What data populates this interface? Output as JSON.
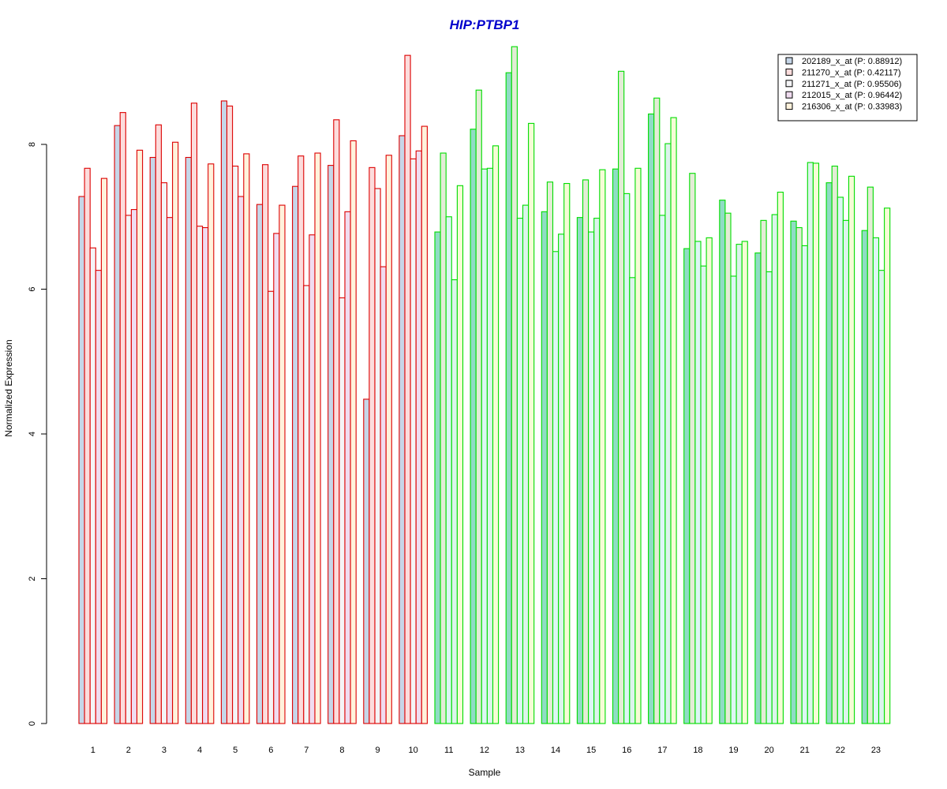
{
  "chart_data": {
    "type": "bar",
    "title": "HIP:PTBP1",
    "title_color": "#0000cc",
    "xlabel": "Sample",
    "ylabel": "Normalized Expression",
    "ylim": [
      0,
      9.4
    ],
    "yticks": [
      0,
      2,
      4,
      6,
      8
    ],
    "grid": false,
    "legend_position": "top-right",
    "categories": [
      "1",
      "2",
      "3",
      "4",
      "5",
      "6",
      "7",
      "8",
      "9",
      "10",
      "11",
      "12",
      "13",
      "14",
      "15",
      "16",
      "17",
      "18",
      "19",
      "20",
      "21",
      "22",
      "23"
    ],
    "group_colors": [
      {
        "samples": "1-10",
        "border": "#dd0000"
      },
      {
        "samples": "11-23",
        "border": "#00dd00"
      }
    ],
    "series": [
      {
        "name": "202189_x_at (P: 0.88912)",
        "fill_group1": "#c6d6e8",
        "fill_group2": "#8fdcc4",
        "values": [
          7.28,
          8.26,
          7.82,
          7.82,
          8.6,
          7.17,
          7.42,
          7.71,
          4.48,
          8.12,
          6.79,
          8.21,
          8.99,
          7.07,
          6.99,
          7.66,
          8.42,
          6.56,
          7.23,
          6.5,
          6.94,
          7.47,
          6.81
        ]
      },
      {
        "name": "211270_x_at (P: 0.42117)",
        "fill_group1": "#fcdcdc",
        "fill_group2": "#e3ecd6",
        "values": [
          7.67,
          8.44,
          8.27,
          8.57,
          8.53,
          7.72,
          7.84,
          8.34,
          7.68,
          9.23,
          7.88,
          8.75,
          9.35,
          7.48,
          7.51,
          9.01,
          8.64,
          7.6,
          7.05,
          6.95,
          6.85,
          7.7,
          7.41
        ]
      },
      {
        "name": "211271_x_at (P: 0.95506)",
        "fill_group1": "#f4f4f6",
        "fill_group2": "#dcf6f4",
        "values": [
          6.57,
          7.02,
          7.47,
          6.87,
          7.7,
          5.97,
          6.05,
          5.88,
          7.39,
          7.8,
          7.0,
          7.66,
          6.98,
          6.52,
          6.79,
          7.32,
          7.02,
          6.66,
          6.18,
          6.24,
          6.6,
          7.27,
          6.71
        ]
      },
      {
        "name": "212015_x_at (P: 0.96442)",
        "fill_group1": "#f0dcf0",
        "fill_group2": "#dcf4ec",
        "values": [
          6.26,
          7.1,
          6.99,
          6.85,
          7.28,
          6.77,
          6.75,
          7.07,
          6.31,
          7.91,
          6.13,
          7.67,
          7.16,
          6.76,
          6.98,
          6.16,
          8.01,
          6.32,
          6.62,
          7.03,
          7.75,
          6.95,
          6.26
        ]
      },
      {
        "name": "216306_x_at (P: 0.33983)",
        "fill_group1": "#fff2dc",
        "fill_group2": "#f6fcd6",
        "values": [
          7.53,
          7.92,
          8.03,
          7.73,
          7.87,
          7.16,
          7.88,
          8.05,
          7.85,
          8.25,
          7.43,
          7.98,
          8.29,
          7.46,
          7.65,
          7.67,
          8.37,
          6.71,
          6.66,
          7.34,
          7.74,
          7.56,
          7.12
        ]
      }
    ]
  }
}
